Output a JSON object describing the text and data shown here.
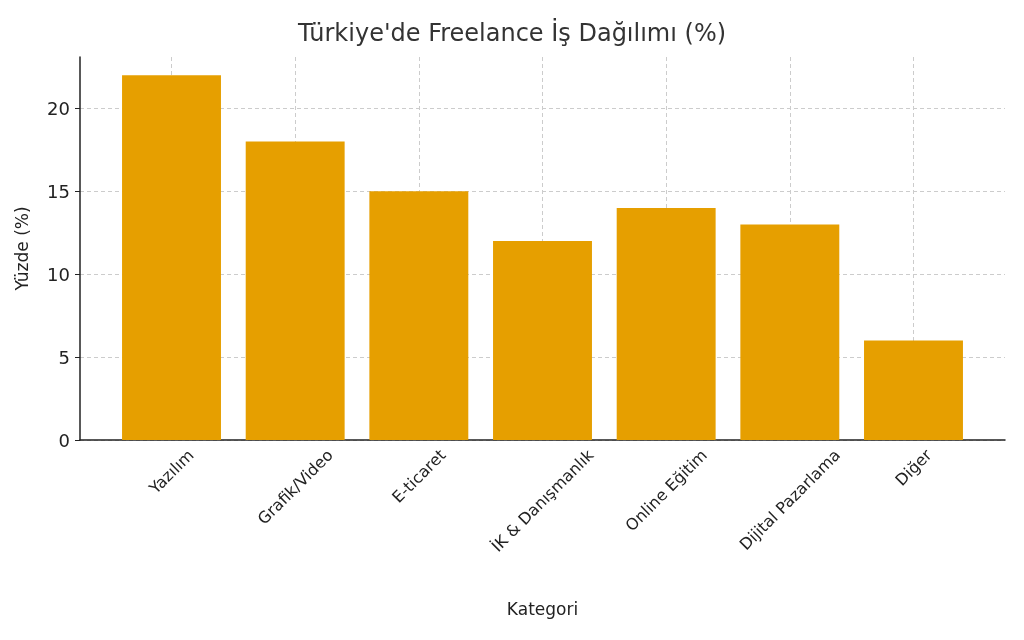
{
  "chart_data": {
    "type": "bar",
    "title": "Türkiye'de Freelance İş Dağılımı (%)",
    "xlabel": "Kategori",
    "ylabel": "Yüzde (%)",
    "categories": [
      "Yazılım",
      "Grafik/Video",
      "E-ticaret",
      "İK & Danışmanlık",
      "Online Eğitim",
      "Dijital Pazarlama",
      "Diğer"
    ],
    "values": [
      22,
      18,
      15,
      12,
      14,
      13,
      6
    ],
    "color": "#e69f00",
    "ylim": [
      0,
      23.1
    ],
    "yticks": [
      0,
      5,
      10,
      15,
      20
    ],
    "grid": true
  }
}
